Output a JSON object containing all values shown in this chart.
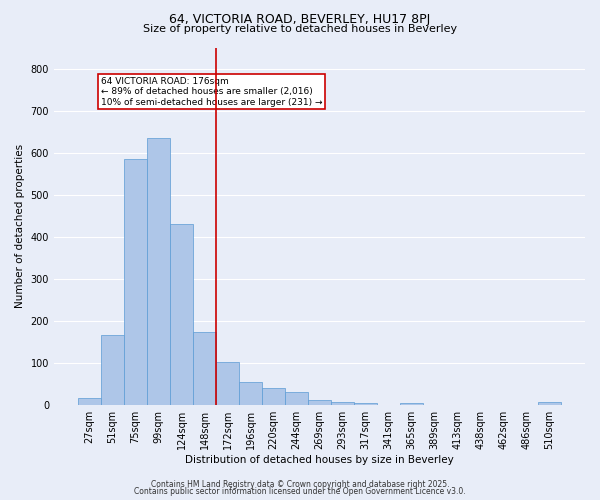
{
  "title1": "64, VICTORIA ROAD, BEVERLEY, HU17 8PJ",
  "title2": "Size of property relative to detached houses in Beverley",
  "xlabel": "Distribution of detached houses by size in Beverley",
  "ylabel": "Number of detached properties",
  "bar_labels": [
    "27sqm",
    "51sqm",
    "75sqm",
    "99sqm",
    "124sqm",
    "148sqm",
    "172sqm",
    "196sqm",
    "220sqm",
    "244sqm",
    "269sqm",
    "293sqm",
    "317sqm",
    "341sqm",
    "365sqm",
    "389sqm",
    "413sqm",
    "438sqm",
    "462sqm",
    "486sqm",
    "510sqm"
  ],
  "bar_values": [
    18,
    168,
    585,
    635,
    430,
    175,
    103,
    55,
    42,
    32,
    12,
    8,
    5,
    0,
    5,
    0,
    0,
    0,
    0,
    0,
    8
  ],
  "bar_color": "#aec6e8",
  "bar_edge_color": "#5b9bd5",
  "vline_index": 6,
  "vline_color": "#cc0000",
  "annotation_text": "64 VICTORIA ROAD: 176sqm\n← 89% of detached houses are smaller (2,016)\n10% of semi-detached houses are larger (231) →",
  "annotation_box_color": "#cc0000",
  "annotation_text_color": "#000000",
  "background_color": "#e8edf8",
  "grid_color": "#ffffff",
  "ylim": [
    0,
    850
  ],
  "yticks": [
    0,
    100,
    200,
    300,
    400,
    500,
    600,
    700,
    800
  ],
  "footer1": "Contains HM Land Registry data © Crown copyright and database right 2025.",
  "footer2": "Contains public sector information licensed under the Open Government Licence v3.0.",
  "title1_fontsize": 9,
  "title2_fontsize": 8,
  "xlabel_fontsize": 7.5,
  "ylabel_fontsize": 7.5,
  "tick_fontsize": 7,
  "footer_fontsize": 5.5
}
